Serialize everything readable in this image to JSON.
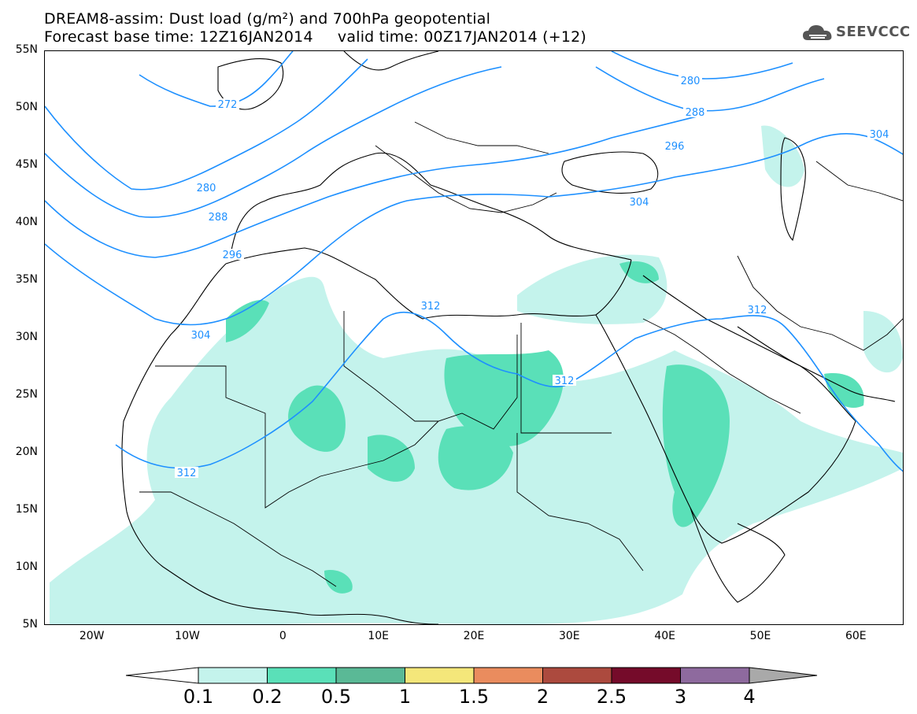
{
  "title": {
    "line1": "DREAM8-assim: Dust load (g/m²) and 700hPa geopotential",
    "line2": "Forecast base time: 12Z16JAN2014     valid time: 00Z17JAN2014 (+12)"
  },
  "logo": {
    "text": "SEEVCCC",
    "icon": "cloud-icon"
  },
  "axes": {
    "lon_min": -25,
    "lon_max": 65,
    "lat_min": 5,
    "lat_max": 55,
    "y_ticks": [
      "55N",
      "50N",
      "45N",
      "40N",
      "35N",
      "30N",
      "25N",
      "20N",
      "15N",
      "10N",
      "5N"
    ],
    "x_ticks": [
      "20W",
      "10W",
      "0",
      "10E",
      "20E",
      "30E",
      "40E",
      "50E",
      "60E"
    ]
  },
  "contours": {
    "color": "#1e90ff",
    "labels": [
      "280",
      "288",
      "296",
      "304",
      "272",
      "280",
      "288",
      "296",
      "304",
      "312",
      "312",
      "312",
      "304",
      "312"
    ]
  },
  "dust_colors": {
    "level_0_1": "#c4f3ec",
    "level_0_2": "#5ae0b8"
  },
  "colorbar": {
    "labels": [
      "0.1",
      "0.2",
      "0.5",
      "1",
      "1.5",
      "2",
      "2.5",
      "3",
      "4"
    ],
    "colors": [
      "#c4f3ec",
      "#5ae0b8",
      "#5ab996",
      "#f4e77a",
      "#ea8c5e",
      "#ac4a3e",
      "#750b2a",
      "#8e6a9e"
    ]
  }
}
